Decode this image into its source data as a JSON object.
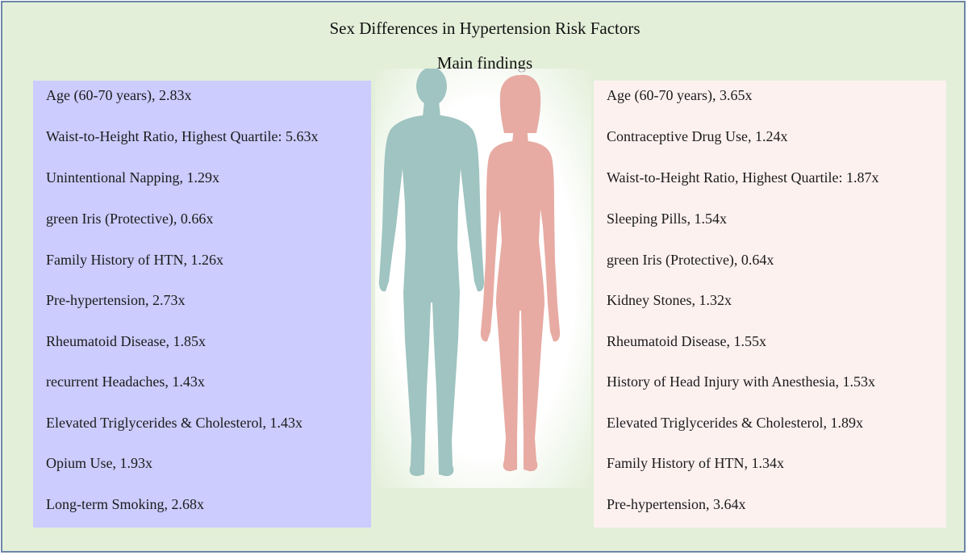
{
  "title": "Sex Differences in Hypertension Risk Factors",
  "subtitle": "Main findings",
  "colors": {
    "background": "#e3efd9",
    "border": "#6d86a6",
    "men_panel": "#ccccff",
    "women_panel": "#fdf1f0",
    "male_figure": "#9fc4c1",
    "female_figure": "#e7aba3"
  },
  "icons": [
    "male-silhouette-icon",
    "female-silhouette-icon"
  ],
  "men": {
    "items": [
      "Age (60-70 years), 2.83x",
      "Waist-to-Height Ratio, Highest Quartile: 5.63x",
      "Unintentional Napping, 1.29x",
      "green Iris (Protective), 0.66x",
      "Family History of HTN, 1.26x",
      "Pre-hypertension, 2.73x",
      "Rheumatoid Disease, 1.85x",
      "recurrent Headaches, 1.43x",
      "Elevated Triglycerides & Cholesterol, 1.43x",
      "Opium Use, 1.93x",
      "Long-term Smoking, 2.68x"
    ]
  },
  "women": {
    "items": [
      "Age (60-70 years), 3.65x",
      "Contraceptive Drug Use, 1.24x",
      "Waist-to-Height Ratio, Highest Quartile: 1.87x",
      "Sleeping Pills, 1.54x",
      "green Iris (Protective), 0.64x",
      "Kidney Stones, 1.32x",
      "Rheumatoid Disease, 1.55x",
      "History of Head Injury with Anesthesia, 1.53x",
      "Elevated Triglycerides & Cholesterol, 1.89x",
      "Family History of HTN, 1.34x",
      "Pre-hypertension, 3.64x"
    ]
  }
}
